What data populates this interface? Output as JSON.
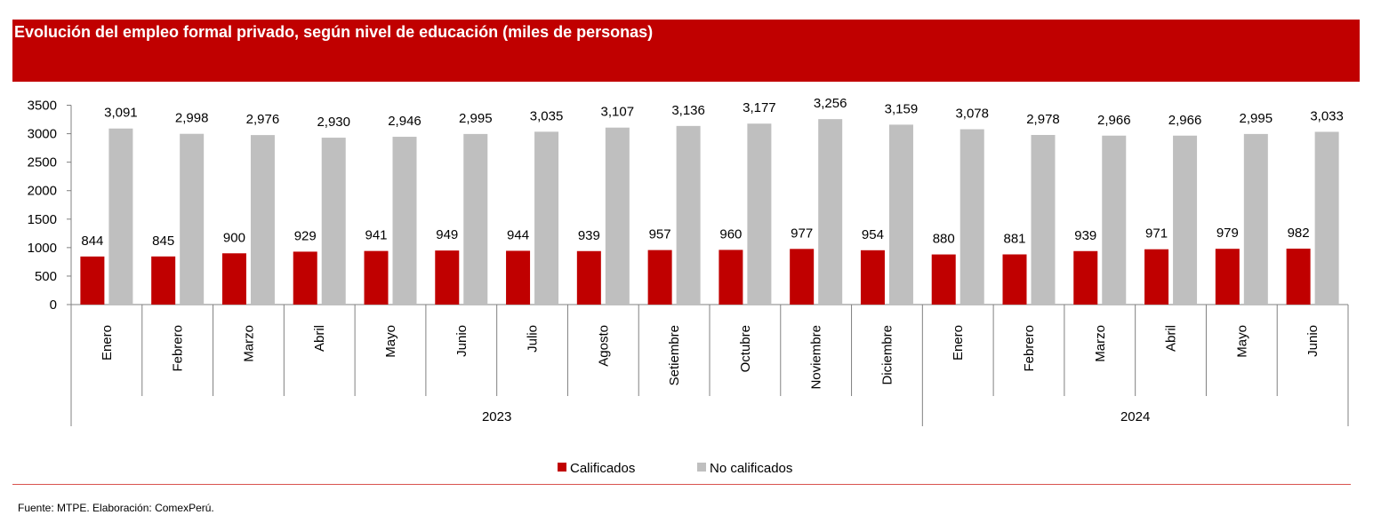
{
  "colors": {
    "title_bg": "#c00000",
    "calificados": "#c00000",
    "no_calificados": "#bfbfbf",
    "footer_rule": "#d9534f"
  },
  "source": "Fuente: MTPE. Elaboración: ComexPerú.",
  "chart_data": {
    "type": "bar",
    "title": "Evolución del empleo formal privado, según nivel de educación (miles de personas)",
    "categories": [
      "Enero",
      "Febrero",
      "Marzo",
      "Abril",
      "Mayo",
      "Junio",
      "Julio",
      "Agosto",
      "Setiembre",
      "Octubre",
      "Noviembre",
      "Diciembre",
      "Enero",
      "Febrero",
      "Marzo",
      "Abril",
      "Mayo",
      "Junio"
    ],
    "groups": [
      {
        "label": "2023",
        "count": 12
      },
      {
        "label": "2024",
        "count": 6
      }
    ],
    "series": [
      {
        "name": "Calificados",
        "values": [
          844,
          845,
          900,
          929,
          941,
          949,
          944,
          939,
          957,
          960,
          977,
          954,
          880,
          881,
          939,
          971,
          979,
          982
        ],
        "labels": [
          "844",
          "845",
          "900",
          "929",
          "941",
          "949",
          "944",
          "939",
          "957",
          "960",
          "977",
          "954",
          "880",
          "881",
          "939",
          "971",
          "979",
          "982"
        ]
      },
      {
        "name": "No calificados",
        "values": [
          3091,
          2998,
          2976,
          2930,
          2946,
          2995,
          3035,
          3107,
          3136,
          3177,
          3256,
          3159,
          3078,
          2978,
          2966,
          2966,
          2995,
          3033
        ],
        "labels": [
          "3,091",
          "2,998",
          "2,976",
          "2,930",
          "2,946",
          "2,995",
          "3,035",
          "3,107",
          "3,136",
          "3,177",
          "3,256",
          "3,159",
          "3,078",
          "2,978",
          "2,966",
          "2,966",
          "2,995",
          "3,033"
        ]
      }
    ],
    "yticks": [
      "0",
      "500",
      "1000",
      "1500",
      "2000",
      "2500",
      "3000",
      "3500"
    ],
    "ylim": [
      0,
      3500
    ],
    "xlabel": "",
    "ylabel": "",
    "grid": false,
    "legend": "bottom-center"
  }
}
